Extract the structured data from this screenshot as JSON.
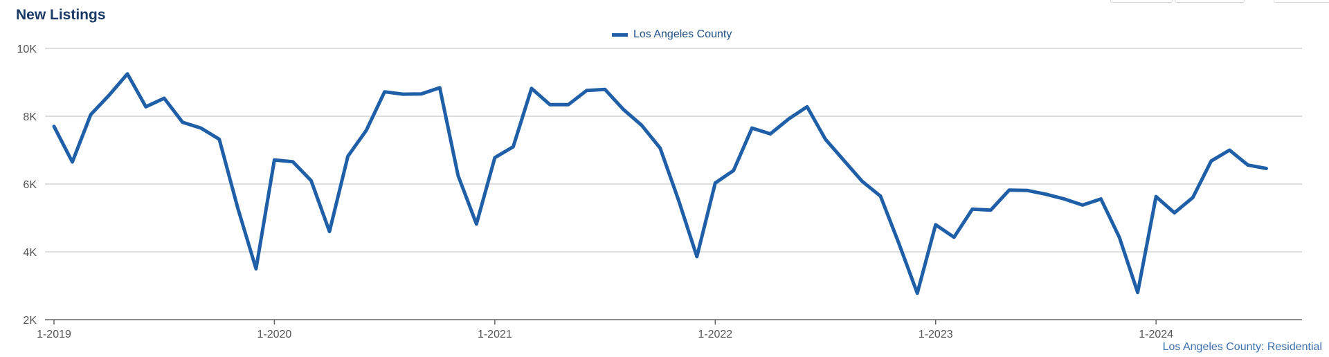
{
  "header": {
    "title": "New Listings"
  },
  "footer": {
    "source_label": "Los Angeles County: Residential"
  },
  "chart_data": {
    "type": "line",
    "title": "New Listings",
    "xlabel": "",
    "ylabel": "",
    "ylim": [
      2000,
      10000
    ],
    "y_ticks": [
      2000,
      4000,
      6000,
      8000,
      10000
    ],
    "y_tick_labels": [
      "2K",
      "4K",
      "6K",
      "8K",
      "10K"
    ],
    "x_tick_labels": [
      "1-2019",
      "1-2020",
      "1-2021",
      "1-2022",
      "1-2023",
      "1-2024"
    ],
    "x_tick_indices": [
      0,
      12,
      24,
      36,
      48,
      60
    ],
    "grid": true,
    "legend_position": "top-center",
    "series": [
      {
        "name": "Los Angeles County",
        "color": "#1f5fa8",
        "values": [
          7700,
          6650,
          8050,
          8620,
          9250,
          8280,
          8530,
          7820,
          7650,
          7320,
          5300,
          3500,
          6710,
          6660,
          6100,
          4600,
          6820,
          7580,
          8720,
          8650,
          8660,
          8840,
          6250,
          4820,
          6780,
          7100,
          8820,
          8340,
          8340,
          8760,
          8790,
          8200,
          7730,
          7060,
          5530,
          3860,
          6030,
          6400,
          7650,
          7480,
          7920,
          8280,
          7320,
          6700,
          6080,
          5640,
          4250,
          2780,
          4800,
          4430,
          5260,
          5230,
          5820,
          5810,
          5700,
          5560,
          5380,
          5560,
          4430,
          2800,
          5630,
          5150,
          5600,
          6680,
          7000,
          6560,
          6460
        ]
      }
    ]
  }
}
